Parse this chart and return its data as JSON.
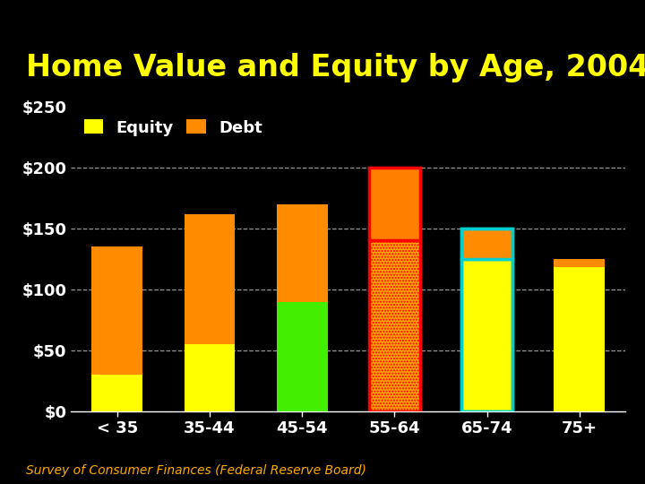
{
  "title": "Home Value and Equity by Age, 2004",
  "subtitle": "Survey of Consumer Finances (Federal Reserve Board)",
  "categories": [
    "< 35",
    "35-44",
    "45-54",
    "55-64",
    "65-74",
    "75+"
  ],
  "equity": [
    30,
    55,
    90,
    140,
    125,
    118
  ],
  "debt": [
    105,
    107,
    80,
    60,
    25,
    7
  ],
  "equity_colors": [
    "#FFFF00",
    "#FFFF00",
    "#44EE00",
    "#FFA500",
    "#FFFF00",
    "#FFFF00"
  ],
  "debt_colors": [
    "#FF8C00",
    "#FF8C00",
    "#FF8C00",
    "#FF8000",
    "#FF8C00",
    "#FF8C00"
  ],
  "equity_hatch": [
    "",
    "",
    "////",
    ".....",
    "",
    ""
  ],
  "debt_hatch": [
    "",
    "",
    "",
    "",
    "",
    ""
  ],
  "bar_edge_colors": [
    "none",
    "none",
    "none",
    "#FF0000",
    "#00CFCF",
    "none"
  ],
  "bar_edge_lw": [
    0,
    0,
    0,
    2.5,
    2.5,
    0
  ],
  "background_color": "#000000",
  "title_color": "#FFFF00",
  "tick_label_color": "#FFFFFF",
  "subtitle_color": "#FFAA00",
  "legend_equity_color": "#FFFF00",
  "legend_debt_color": "#FF8C00",
  "ylim": [
    0,
    250
  ],
  "yticks": [
    0,
    50,
    100,
    150,
    200,
    250
  ],
  "ytick_labels": [
    "$0",
    "$50",
    "$100",
    "$150",
    "$200",
    "$250"
  ],
  "grid_color": "#FFFFFF",
  "title_fontsize": 24,
  "tick_fontsize": 13,
  "legend_fontsize": 13,
  "subtitle_fontsize": 10,
  "bar_width": 0.55
}
